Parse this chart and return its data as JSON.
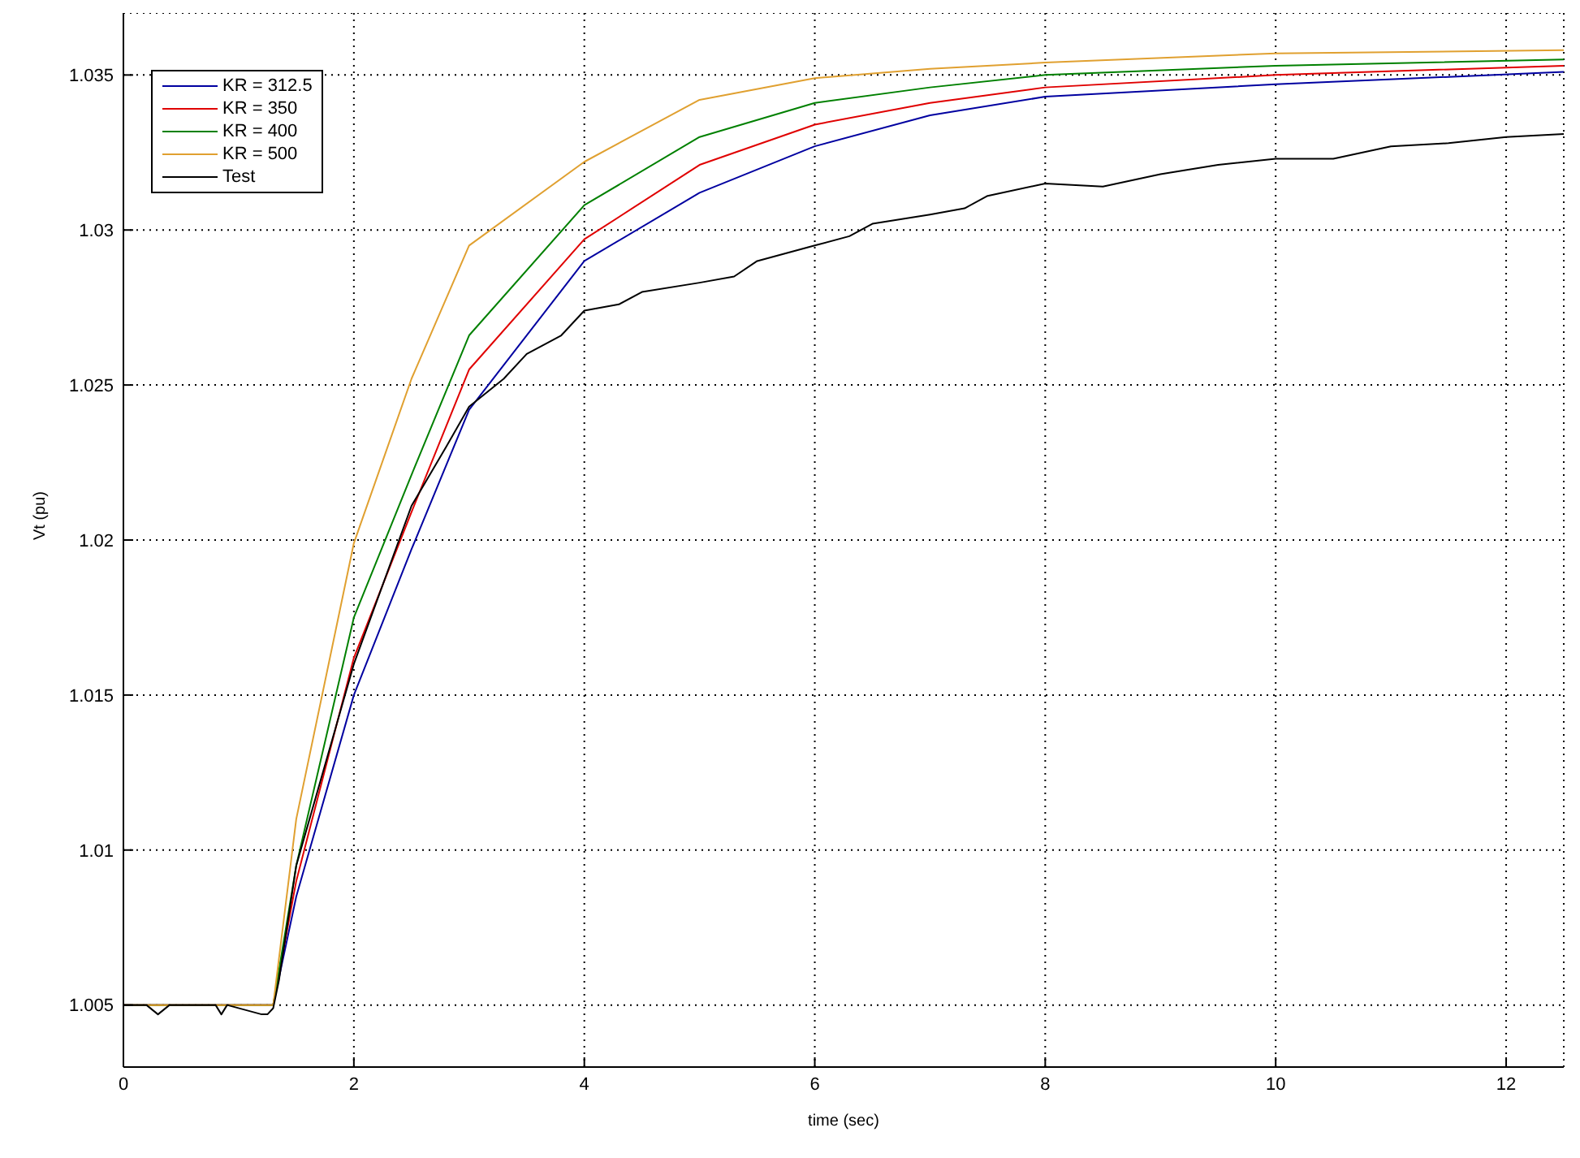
{
  "chart_data": {
    "type": "line",
    "xlabel": "time (sec)",
    "ylabel": "Vt (pu)",
    "xlim": [
      0,
      12.5
    ],
    "ylim": [
      1.003,
      1.037
    ],
    "xticks": [
      0,
      2,
      4,
      6,
      8,
      10,
      12
    ],
    "yticks": [
      1.005,
      1.01,
      1.015,
      1.02,
      1.025,
      1.03,
      1.035
    ],
    "grid": true,
    "legend": "top left",
    "line_style": "solid",
    "marker": "none",
    "series": [
      {
        "name": "KR = 312.5",
        "color": "#0000a0",
        "x": [
          0,
          1.3,
          1.5,
          2,
          2.5,
          3,
          4,
          5,
          6,
          7,
          8,
          10,
          12.5
        ],
        "values": [
          1.005,
          1.005,
          1.0085,
          1.015,
          1.0197,
          1.0242,
          1.029,
          1.0312,
          1.0327,
          1.0337,
          1.0343,
          1.0347,
          1.0351
        ]
      },
      {
        "name": "KR = 350",
        "color": "#e00000",
        "x": [
          0,
          1.3,
          1.5,
          2,
          2.5,
          3,
          4,
          5,
          6,
          7,
          8,
          10,
          12.5
        ],
        "values": [
          1.005,
          1.005,
          1.009,
          1.0162,
          1.0209,
          1.0255,
          1.0297,
          1.0321,
          1.0334,
          1.0341,
          1.0346,
          1.035,
          1.0353
        ]
      },
      {
        "name": "KR = 400",
        "color": "#008000",
        "x": [
          0,
          1.3,
          1.5,
          2,
          2.5,
          3,
          4,
          5,
          6,
          7,
          8,
          10,
          12.5
        ],
        "values": [
          1.005,
          1.005,
          1.0095,
          1.0175,
          1.0221,
          1.0266,
          1.0308,
          1.033,
          1.0341,
          1.0346,
          1.035,
          1.0353,
          1.0355
        ]
      },
      {
        "name": "KR = 500",
        "color": "#e0a030",
        "x": [
          0,
          1.3,
          1.5,
          2,
          2.5,
          3,
          4,
          5,
          6,
          7,
          8,
          10,
          12.5
        ],
        "values": [
          1.005,
          1.005,
          1.011,
          1.0199,
          1.0252,
          1.0295,
          1.0322,
          1.0342,
          1.0349,
          1.0352,
          1.0354,
          1.0357,
          1.0358
        ]
      },
      {
        "name": "Test",
        "color": "#000000",
        "x": [
          0,
          0.2,
          0.3,
          0.4,
          0.8,
          0.85,
          0.9,
          1.2,
          1.25,
          1.3,
          1.35,
          1.5,
          2,
          2.5,
          2.8,
          3,
          3.3,
          3.5,
          3.8,
          4,
          4.3,
          4.5,
          5,
          5.3,
          5.5,
          6,
          6.3,
          6.5,
          7,
          7.3,
          7.5,
          8,
          8.5,
          9,
          9.5,
          10,
          10.5,
          11,
          11.5,
          12,
          12.5
        ],
        "values": [
          1.005,
          1.005,
          1.0047,
          1.005,
          1.005,
          1.0047,
          1.005,
          1.0047,
          1.0047,
          1.0049,
          1.0058,
          1.0095,
          1.016,
          1.0211,
          1.023,
          1.0243,
          1.0252,
          1.026,
          1.0266,
          1.0274,
          1.0276,
          1.028,
          1.0283,
          1.0285,
          1.029,
          1.0295,
          1.0298,
          1.0302,
          1.0305,
          1.0307,
          1.0311,
          1.0315,
          1.0314,
          1.0318,
          1.0321,
          1.0323,
          1.0323,
          1.0327,
          1.0328,
          1.033,
          1.0331
        ]
      }
    ]
  }
}
